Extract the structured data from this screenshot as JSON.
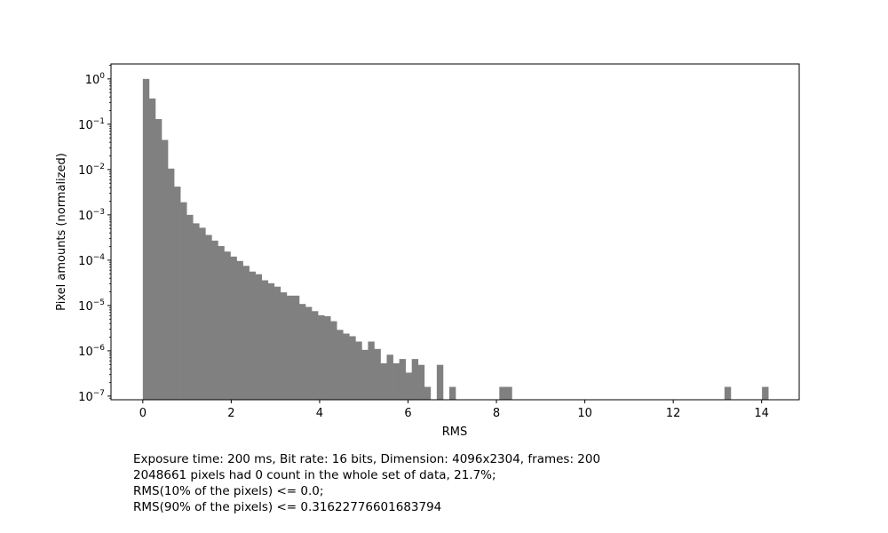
{
  "chart_data": {
    "type": "bar",
    "title": "",
    "xlabel": "RMS",
    "ylabel": "Pixel amounts (normalized)",
    "xlim": [
      -0.72,
      14.85
    ],
    "ylim_log10": [
      -7.08,
      0.33
    ],
    "yscale": "log",
    "grid": false,
    "bar_color": "#808080",
    "bin_width": 0.1415,
    "x_ticks": [
      0,
      2,
      4,
      6,
      8,
      10,
      12,
      14
    ],
    "y_ticks": [
      {
        "base": "10",
        "exp": "0",
        "value": 1
      },
      {
        "base": "10",
        "exp": "−1",
        "value": 0.1
      },
      {
        "base": "10",
        "exp": "−2",
        "value": 0.01
      },
      {
        "base": "10",
        "exp": "−3",
        "value": 0.001
      },
      {
        "base": "10",
        "exp": "−4",
        "value": 0.0001
      },
      {
        "base": "10",
        "exp": "−5",
        "value": 1e-05
      },
      {
        "base": "10",
        "exp": "−6",
        "value": 1e-06
      },
      {
        "base": "10",
        "exp": "−7",
        "value": 1e-07
      }
    ],
    "bins": [
      {
        "x": 0.0,
        "y": 1.0
      },
      {
        "x": 0.1415,
        "y": 0.37
      },
      {
        "x": 0.283,
        "y": 0.13
      },
      {
        "x": 0.4245,
        "y": 0.045
      },
      {
        "x": 0.566,
        "y": 0.0105
      },
      {
        "x": 0.7075,
        "y": 0.0042
      },
      {
        "x": 0.849,
        "y": 0.0019
      },
      {
        "x": 0.9905,
        "y": 0.001
      },
      {
        "x": 1.132,
        "y": 0.00065
      },
      {
        "x": 1.2735,
        "y": 0.00052
      },
      {
        "x": 1.415,
        "y": 0.00036
      },
      {
        "x": 1.5565,
        "y": 0.00027
      },
      {
        "x": 1.698,
        "y": 0.000205
      },
      {
        "x": 1.8395,
        "y": 0.000155
      },
      {
        "x": 1.981,
        "y": 0.00012
      },
      {
        "x": 2.1225,
        "y": 9.6e-05
      },
      {
        "x": 2.264,
        "y": 7.5e-05
      },
      {
        "x": 2.4055,
        "y": 5.6e-05
      },
      {
        "x": 2.547,
        "y": 4.9e-05
      },
      {
        "x": 2.6885,
        "y": 3.6e-05
      },
      {
        "x": 2.83,
        "y": 3.1e-05
      },
      {
        "x": 2.9715,
        "y": 2.6e-05
      },
      {
        "x": 3.113,
        "y": 1.95e-05
      },
      {
        "x": 3.2545,
        "y": 1.65e-05
      },
      {
        "x": 3.396,
        "y": 1.65e-05
      },
      {
        "x": 3.5375,
        "y": 1.08e-05
      },
      {
        "x": 3.679,
        "y": 9.3e-06
      },
      {
        "x": 3.8205,
        "y": 7.5e-06
      },
      {
        "x": 3.962,
        "y": 6.1e-06
      },
      {
        "x": 4.1035,
        "y": 5.8e-06
      },
      {
        "x": 4.245,
        "y": 4.5e-06
      },
      {
        "x": 4.3865,
        "y": 2.9e-06
      },
      {
        "x": 4.528,
        "y": 2.4e-06
      },
      {
        "x": 4.6695,
        "y": 2.1e-06
      },
      {
        "x": 4.811,
        "y": 1.6e-06
      },
      {
        "x": 4.9525,
        "y": 1.05e-06
      },
      {
        "x": 5.094,
        "y": 1.6e-06
      },
      {
        "x": 5.2355,
        "y": 1.1e-06
      },
      {
        "x": 5.377,
        "y": 5.3e-07
      },
      {
        "x": 5.5185,
        "y": 8.2e-07
      },
      {
        "x": 5.66,
        "y": 5.3e-07
      },
      {
        "x": 5.8015,
        "y": 6.6e-07
      },
      {
        "x": 5.943,
        "y": 3.3e-07
      },
      {
        "x": 6.0845,
        "y": 6.6e-07
      },
      {
        "x": 6.226,
        "y": 4.9e-07
      },
      {
        "x": 6.3675,
        "y": 1.6e-07
      },
      {
        "x": 6.509,
        "y": 0.0
      },
      {
        "x": 6.6505,
        "y": 4.9e-07
      },
      {
        "x": 6.792,
        "y": 0.0
      },
      {
        "x": 6.9335,
        "y": 1.6e-07
      },
      {
        "x": 8.0655,
        "y": 1.6e-07
      },
      {
        "x": 8.207,
        "y": 1.6e-07
      },
      {
        "x": 13.1595,
        "y": 1.6e-07
      },
      {
        "x": 14.0085,
        "y": 1.6e-07
      }
    ]
  },
  "notes": [
    "Exposure time: 200 ms, Bit rate: 16 bits, Dimension: 4096x2304, frames: 200",
    "2048661 pixels had 0 count in the whole set of data, 21.7%;",
    "RMS(10% of the pixels) <= 0.0;",
    "RMS(90% of the pixels) <= 0.31622776601683794"
  ]
}
